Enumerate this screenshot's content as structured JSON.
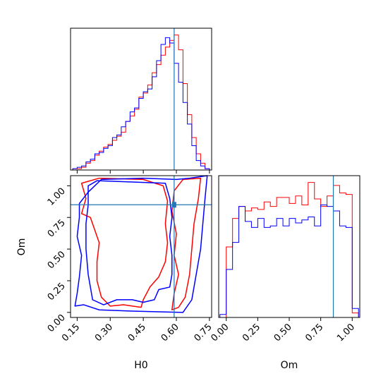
{
  "chart_data": {
    "type": "corner",
    "parameters": [
      "H0",
      "Om"
    ],
    "truths": {
      "H0": 0.59,
      "Om": 0.85
    },
    "grid": false,
    "colors": {
      "series_a": "#ff0000",
      "series_b": "#0000ff",
      "truth": "#1f77b4"
    },
    "panels": [
      {
        "id": "hist-h0",
        "type": "histogram",
        "x_param": "H0",
        "xlim": [
          0.12,
          0.76
        ],
        "xticks": [
          0.15,
          0.3,
          0.45,
          0.6,
          0.75
        ],
        "show_tick_labels": false,
        "bin_edges": [
          0.13,
          0.15,
          0.17,
          0.19,
          0.21,
          0.23,
          0.25,
          0.27,
          0.29,
          0.31,
          0.33,
          0.35,
          0.37,
          0.39,
          0.41,
          0.43,
          0.45,
          0.47,
          0.49,
          0.51,
          0.53,
          0.55,
          0.57,
          0.59,
          0.61,
          0.63,
          0.65,
          0.67,
          0.69,
          0.71,
          0.73,
          0.75
        ],
        "series": [
          {
            "color_key": "series_a",
            "counts": [
              0.01,
              0.01,
              0.02,
              0.05,
              0.07,
              0.11,
              0.14,
              0.17,
              0.19,
              0.22,
              0.25,
              0.28,
              0.36,
              0.4,
              0.45,
              0.54,
              0.57,
              0.63,
              0.72,
              0.78,
              0.85,
              0.91,
              0.96,
              1.0,
              0.89,
              0.64,
              0.41,
              0.24,
              0.12,
              0.05,
              0.01
            ]
          },
          {
            "color_key": "series_b",
            "counts": [
              0.01,
              0.02,
              0.03,
              0.06,
              0.08,
              0.12,
              0.13,
              0.16,
              0.18,
              0.24,
              0.26,
              0.32,
              0.36,
              0.43,
              0.46,
              0.53,
              0.58,
              0.6,
              0.69,
              0.81,
              0.93,
              0.98,
              0.94,
              0.79,
              0.65,
              0.5,
              0.34,
              0.18,
              0.07,
              0.03,
              0.01
            ]
          }
        ]
      },
      {
        "id": "contour-h0-om",
        "type": "contour",
        "x_param": "H0",
        "y_param": "Om",
        "xlim": [
          0.12,
          0.76
        ],
        "ylim": [
          -0.04,
          1.08
        ],
        "xticks": [
          0.15,
          0.3,
          0.45,
          0.6,
          0.75
        ],
        "xtick_labels": [
          "0.15",
          "0.30",
          "0.45",
          "0.60",
          "0.75"
        ],
        "yticks": [
          0.0,
          0.25,
          0.5,
          0.75,
          1.0
        ],
        "ytick_labels": [
          "0.00",
          "0.25",
          "0.50",
          "0.75",
          "1.00"
        ],
        "xlabel": "H0",
        "ylabel": "Om",
        "series": [
          {
            "color_key": "series_a",
            "contours": [
              [
                [
                  0.17,
                  1.02
                ],
                [
                  0.25,
                  1.06
                ],
                [
                  0.45,
                  1.05
                ],
                [
                  0.54,
                  1.0
                ],
                [
                  0.56,
                  0.88
                ],
                [
                  0.55,
                  0.7
                ],
                [
                  0.56,
                  0.55
                ],
                [
                  0.55,
                  0.4
                ],
                [
                  0.52,
                  0.28
                ],
                [
                  0.48,
                  0.2
                ],
                [
                  0.45,
                  0.1
                ],
                [
                  0.44,
                  0.04
                ],
                [
                  0.36,
                  0.06
                ],
                [
                  0.3,
                  0.05
                ],
                [
                  0.26,
                  0.12
                ],
                [
                  0.24,
                  0.25
                ],
                [
                  0.24,
                  0.4
                ],
                [
                  0.25,
                  0.55
                ],
                [
                  0.23,
                  0.65
                ],
                [
                  0.21,
                  0.75
                ],
                [
                  0.17,
                  0.78
                ],
                [
                  0.19,
                  0.9
                ],
                [
                  0.17,
                  1.02
                ]
              ],
              [
                [
                  0.59,
                  0.96
                ],
                [
                  0.63,
                  1.05
                ],
                [
                  0.71,
                  1.06
                ],
                [
                  0.7,
                  0.9
                ],
                [
                  0.68,
                  0.7
                ],
                [
                  0.67,
                  0.5
                ],
                [
                  0.66,
                  0.3
                ],
                [
                  0.64,
                  0.12
                ],
                [
                  0.61,
                  0.04
                ],
                [
                  0.58,
                  0.02
                ],
                [
                  0.59,
                  0.15
                ],
                [
                  0.61,
                  0.3
                ],
                [
                  0.59,
                  0.45
                ],
                [
                  0.6,
                  0.62
                ],
                [
                  0.58,
                  0.8
                ],
                [
                  0.59,
                  0.96
                ]
              ]
            ]
          },
          {
            "color_key": "series_b",
            "contours": [
              [
                [
                  0.2,
                  1.0
                ],
                [
                  0.24,
                  1.04
                ],
                [
                  0.4,
                  1.03
                ],
                [
                  0.55,
                  1.02
                ],
                [
                  0.57,
                  0.9
                ],
                [
                  0.58,
                  0.75
                ],
                [
                  0.57,
                  0.6
                ],
                [
                  0.58,
                  0.45
                ],
                [
                  0.58,
                  0.3
                ],
                [
                  0.57,
                  0.2
                ],
                [
                  0.52,
                  0.18
                ],
                [
                  0.5,
                  0.1
                ],
                [
                  0.45,
                  0.08
                ],
                [
                  0.4,
                  0.1
                ],
                [
                  0.33,
                  0.1
                ],
                [
                  0.27,
                  0.06
                ],
                [
                  0.22,
                  0.1
                ],
                [
                  0.2,
                  0.3
                ],
                [
                  0.19,
                  0.5
                ],
                [
                  0.19,
                  0.7
                ],
                [
                  0.2,
                  0.85
                ],
                [
                  0.2,
                  1.0
                ]
              ],
              [
                [
                  0.6,
                  1.05
                ],
                [
                  0.66,
                  1.06
                ],
                [
                  0.74,
                  1.08
                ],
                [
                  0.73,
                  0.9
                ],
                [
                  0.72,
                  0.7
                ],
                [
                  0.71,
                  0.5
                ],
                [
                  0.69,
                  0.3
                ],
                [
                  0.67,
                  0.1
                ],
                [
                  0.63,
                  0.0
                ],
                [
                  0.4,
                  0.01
                ],
                [
                  0.25,
                  0.02
                ],
                [
                  0.18,
                  0.06
                ],
                [
                  0.14,
                  0.05
                ],
                [
                  0.15,
                  0.15
                ],
                [
                  0.16,
                  0.28
                ],
                [
                  0.17,
                  0.45
                ],
                [
                  0.15,
                  0.6
                ],
                [
                  0.16,
                  0.75
                ],
                [
                  0.16,
                  0.86
                ],
                [
                  0.2,
                  0.95
                ],
                [
                  0.26,
                  1.05
                ],
                [
                  0.45,
                  1.06
                ],
                [
                  0.6,
                  1.05
                ]
              ]
            ]
          }
        ]
      },
      {
        "id": "hist-om",
        "type": "histogram",
        "x_param": "Om",
        "xlim": [
          -0.06,
          1.06
        ],
        "xticks": [
          0.0,
          0.25,
          0.5,
          0.75,
          1.0
        ],
        "xtick_labels": [
          "0.00",
          "0.25",
          "0.50",
          "0.75",
          "1.00"
        ],
        "xlabel": "Om",
        "bin_edges": [
          -0.05,
          0.0,
          0.05,
          0.1,
          0.15,
          0.2,
          0.25,
          0.3,
          0.35,
          0.4,
          0.45,
          0.5,
          0.55,
          0.6,
          0.65,
          0.7,
          0.75,
          0.8,
          0.85,
          0.9,
          0.95,
          1.0,
          1.05
        ],
        "series": [
          {
            "color_key": "series_a",
            "counts": [
              0.0,
              0.47,
              0.66,
              0.74,
              0.71,
              0.73,
              0.72,
              0.77,
              0.74,
              0.8,
              0.8,
              0.76,
              0.81,
              0.75,
              0.9,
              0.79,
              0.74,
              0.81,
              0.88,
              0.83,
              0.82,
              0.03
            ]
          },
          {
            "color_key": "series_b",
            "counts": [
              0.02,
              0.32,
              0.5,
              0.74,
              0.64,
              0.6,
              0.66,
              0.6,
              0.61,
              0.66,
              0.61,
              0.66,
              0.63,
              0.65,
              0.67,
              0.61,
              0.75,
              0.74,
              0.71,
              0.61,
              0.6,
              0.06
            ]
          }
        ]
      }
    ]
  }
}
